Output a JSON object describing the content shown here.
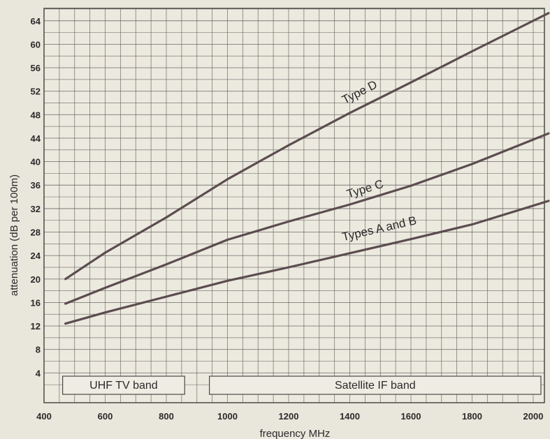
{
  "chart_data": {
    "type": "line",
    "xlabel": "frequency MHz",
    "ylabel": "attenuation  (dB per 100m)",
    "xlim": [
      400,
      2050
    ],
    "ylim": [
      0,
      66
    ],
    "xticks": [
      400,
      600,
      800,
      1000,
      1200,
      1400,
      1600,
      1800,
      2000
    ],
    "yticks": [
      4,
      8,
      12,
      16,
      20,
      24,
      28,
      32,
      36,
      40,
      44,
      48,
      52,
      56,
      60,
      64
    ],
    "grid": true,
    "series": [
      {
        "name": "Type D",
        "x": [
          470,
          600,
          800,
          1000,
          1200,
          1400,
          1600,
          1800,
          2050
        ],
        "y": [
          20,
          24.5,
          30.5,
          37,
          42.8,
          48.3,
          53.5,
          58.8,
          65.3
        ]
      },
      {
        "name": "Type C",
        "x": [
          470,
          600,
          800,
          1000,
          1200,
          1400,
          1600,
          1800,
          2050
        ],
        "y": [
          15.8,
          18.5,
          22.5,
          26.7,
          29.8,
          32.7,
          35.9,
          39.6,
          44.8
        ]
      },
      {
        "name": "Types A and B",
        "x": [
          470,
          600,
          800,
          1000,
          1200,
          1400,
          1600,
          1800,
          2050
        ],
        "y": [
          12.4,
          14.3,
          17,
          19.7,
          22,
          24.4,
          26.8,
          29.3,
          33.3
        ]
      }
    ],
    "bands": [
      {
        "label": "UHF TV band",
        "x": [
          470,
          860
        ]
      },
      {
        "label": "Satellite IF band",
        "x": [
          950,
          2050
        ]
      }
    ],
    "colors": {
      "line": "#5b4d4f",
      "grid": "#5a5a55",
      "background": "#ece9df",
      "text": "#2a2a2a"
    }
  }
}
